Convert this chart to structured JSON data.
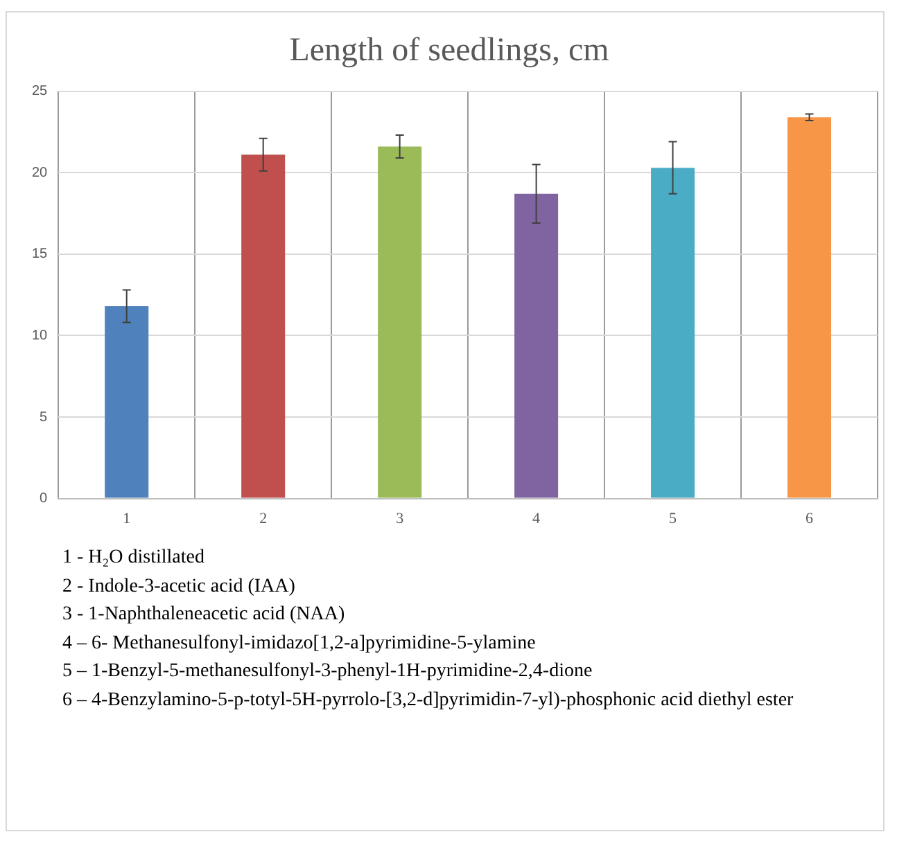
{
  "chart_data": {
    "type": "bar",
    "title": "Length of seedlings, cm",
    "categories": [
      "1",
      "2",
      "3",
      "4",
      "5",
      "6"
    ],
    "values": [
      11.8,
      21.1,
      21.6,
      18.7,
      20.3,
      23.4
    ],
    "errors": [
      1.0,
      1.0,
      0.7,
      1.8,
      1.6,
      0.2
    ],
    "colors": [
      "#4f81bd",
      "#c0504d",
      "#9bbb59",
      "#8064a2",
      "#4bacc6",
      "#f79646"
    ],
    "ylim": [
      0,
      25
    ],
    "yticks": [
      0,
      5,
      10,
      15,
      20,
      25
    ],
    "grid": true,
    "legend": false,
    "annotations": [
      "1 - H₂O distillated",
      "2 - Indole-3-acetic  acid  (IAA)",
      "3 - 1-Naphthaleneacetic  acid (NAA)",
      "4 – 6- Methanesulfonyl-imidazo[1,2-a]pyrimidine-5-ylamine",
      "5 – 1-Benzyl-5-methanesulfonyl-3-phenyl-1H-pyrimidine-2,4-dione",
      "6 – 4-Benzylamino-5-p-totyl-5H-pyrrolo-[3,2-d]pyrimidin-7-yl)-phosphonic acid diethyl  ester"
    ]
  }
}
